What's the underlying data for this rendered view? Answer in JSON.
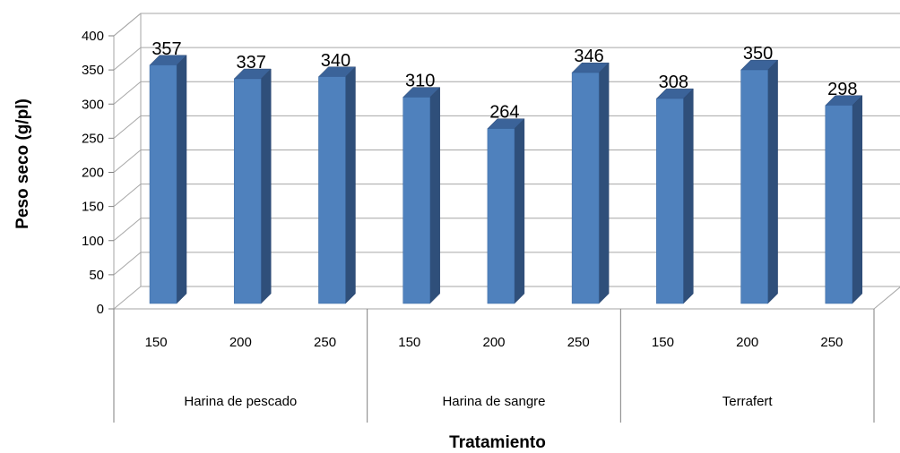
{
  "chart_data": {
    "type": "bar",
    "xlabel": "Tratamiento",
    "ylabel": "Peso seco (g/pl)",
    "ylim": [
      0,
      400
    ],
    "y_ticks": [
      0,
      50,
      100,
      150,
      200,
      250,
      300,
      350,
      400
    ],
    "groups": [
      "Harina de pescado",
      "Harina de sangre",
      "Terrafert"
    ],
    "categories": [
      "150",
      "200",
      "250",
      "150",
      "200",
      "250",
      "150",
      "200",
      "250"
    ],
    "values": [
      357,
      337,
      340,
      310,
      264,
      346,
      308,
      350,
      298
    ],
    "grid": true,
    "legend": "none",
    "bar_color": "#4F81BD",
    "bar_side_color": "#2F4F7A",
    "bar_top_color": "#3B6399"
  }
}
